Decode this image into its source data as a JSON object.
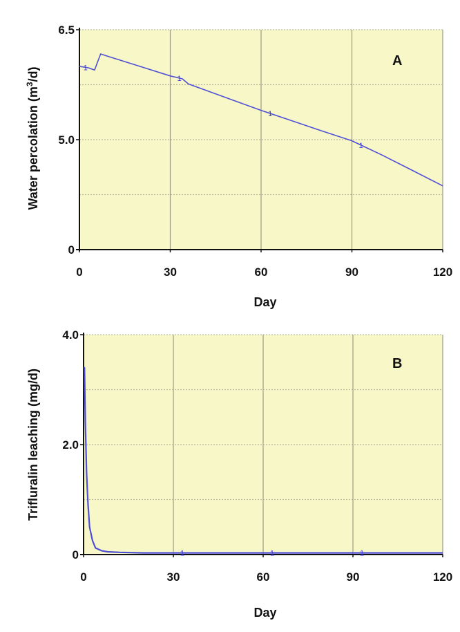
{
  "colors": {
    "plot_background": "#f8f7c8",
    "grid_major": "#9c9c84",
    "grid_minor": "#b8b89e",
    "series_line": "#4f4fd6",
    "axis": "#111111"
  },
  "chart_data": [
    {
      "type": "line",
      "panel_label": "A",
      "title": "",
      "xlabel": "Day",
      "ylabel_main": "Water percolation  (m",
      "ylabel_sup": "3",
      "ylabel_tail": "/d)",
      "xlim": [
        0,
        120
      ],
      "x_ticks": [
        "0",
        "30",
        "60",
        "90",
        "120"
      ],
      "y_ticks": [
        "0",
        "5.0",
        "6.5"
      ],
      "y_axis_note": "nonlinear tick spacing as printed: 0 at bottom, 5.0 at middle, 6.5 at top",
      "grid": true,
      "series": [
        {
          "marker_label": "1",
          "x": [
            0,
            3,
            5,
            6,
            7,
            10,
            20,
            30,
            34,
            36,
            40,
            50,
            60,
            70,
            80,
            90,
            100,
            110,
            120
          ],
          "y": [
            6.0,
            5.98,
            5.95,
            6.06,
            6.17,
            6.13,
            6.0,
            5.87,
            5.83,
            5.76,
            5.7,
            5.55,
            5.4,
            5.26,
            5.12,
            4.99,
            4.86,
            4.72,
            4.58
          ]
        }
      ],
      "series_markers": [
        {
          "x": 2,
          "text": "1"
        },
        {
          "x": 33,
          "text": "1"
        },
        {
          "x": 63,
          "text": "1"
        },
        {
          "x": 93,
          "text": "1"
        }
      ]
    },
    {
      "type": "line",
      "panel_label": "B",
      "title": "",
      "xlabel": "Day",
      "ylabel": "Trifluralin leaching (mg/d)",
      "xlim": [
        0,
        120
      ],
      "ylim": [
        0,
        4.0
      ],
      "x_ticks": [
        "0",
        "30",
        "60",
        "90",
        "120"
      ],
      "y_ticks": [
        "0",
        "2.0",
        "4.0"
      ],
      "grid": true,
      "series": [
        {
          "marker_label": "1",
          "x": [
            0,
            0.3,
            0.6,
            1.0,
            1.5,
            2,
            3,
            4,
            6,
            8,
            12,
            20,
            40,
            60,
            80,
            100,
            120
          ],
          "y": [
            3.4,
            3.4,
            2.4,
            1.5,
            0.9,
            0.5,
            0.25,
            0.12,
            0.07,
            0.05,
            0.04,
            0.03,
            0.03,
            0.03,
            0.03,
            0.03,
            0.03
          ]
        }
      ],
      "series_markers": [
        {
          "x": 33,
          "text": "1"
        },
        {
          "x": 63,
          "text": "1"
        },
        {
          "x": 93,
          "text": "1"
        }
      ]
    }
  ]
}
